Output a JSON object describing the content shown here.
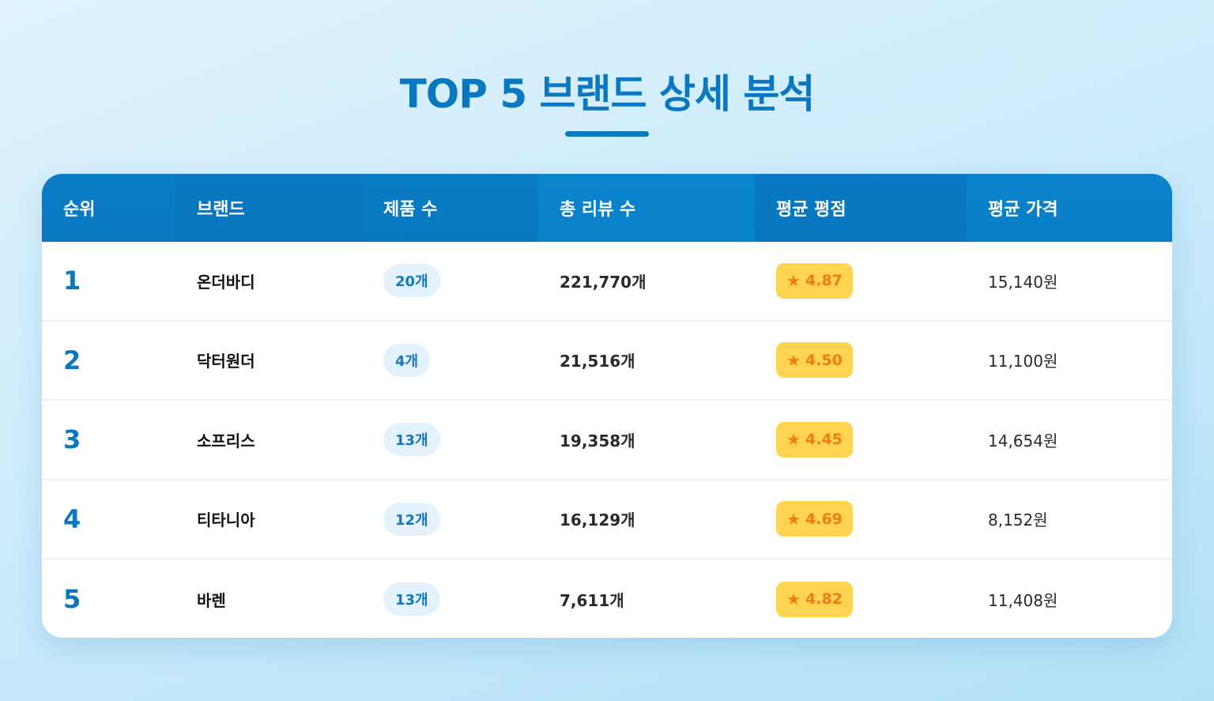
{
  "page": {
    "title": "TOP 5 브랜드 상세 분석"
  },
  "table": {
    "headers": [
      "순위",
      "브랜드",
      "제품 수",
      "총 리뷰 수",
      "평균 평점",
      "평균 가격"
    ],
    "rows": [
      {
        "rank": "1",
        "brand": "온더바디",
        "products": "20개",
        "reviews": "221,770개",
        "rating": "4.87",
        "price": "15,140원"
      },
      {
        "rank": "2",
        "brand": "닥터원더",
        "products": "4개",
        "reviews": "21,516개",
        "rating": "4.50",
        "price": "11,100원"
      },
      {
        "rank": "3",
        "brand": "소프리스",
        "products": "13개",
        "reviews": "19,358개",
        "rating": "4.45",
        "price": "14,654원"
      },
      {
        "rank": "4",
        "brand": "티타니아",
        "products": "12개",
        "reviews": "16,129개",
        "rating": "4.69",
        "price": "8,152원"
      },
      {
        "rank": "5",
        "brand": "바렌",
        "products": "13개",
        "reviews": "7,611개",
        "rating": "4.82",
        "price": "11,408원"
      }
    ],
    "rating_icon": "star-icon",
    "star_glyph": "★"
  },
  "colors": {
    "accent": "#0a77c1",
    "header_bg": "#0a7fc9",
    "rating_badge_bg": "#ffd452",
    "rating_text": "#ef7d10",
    "count_badge_bg": "#e3f2fd",
    "count_badge_text": "#1577bd"
  }
}
